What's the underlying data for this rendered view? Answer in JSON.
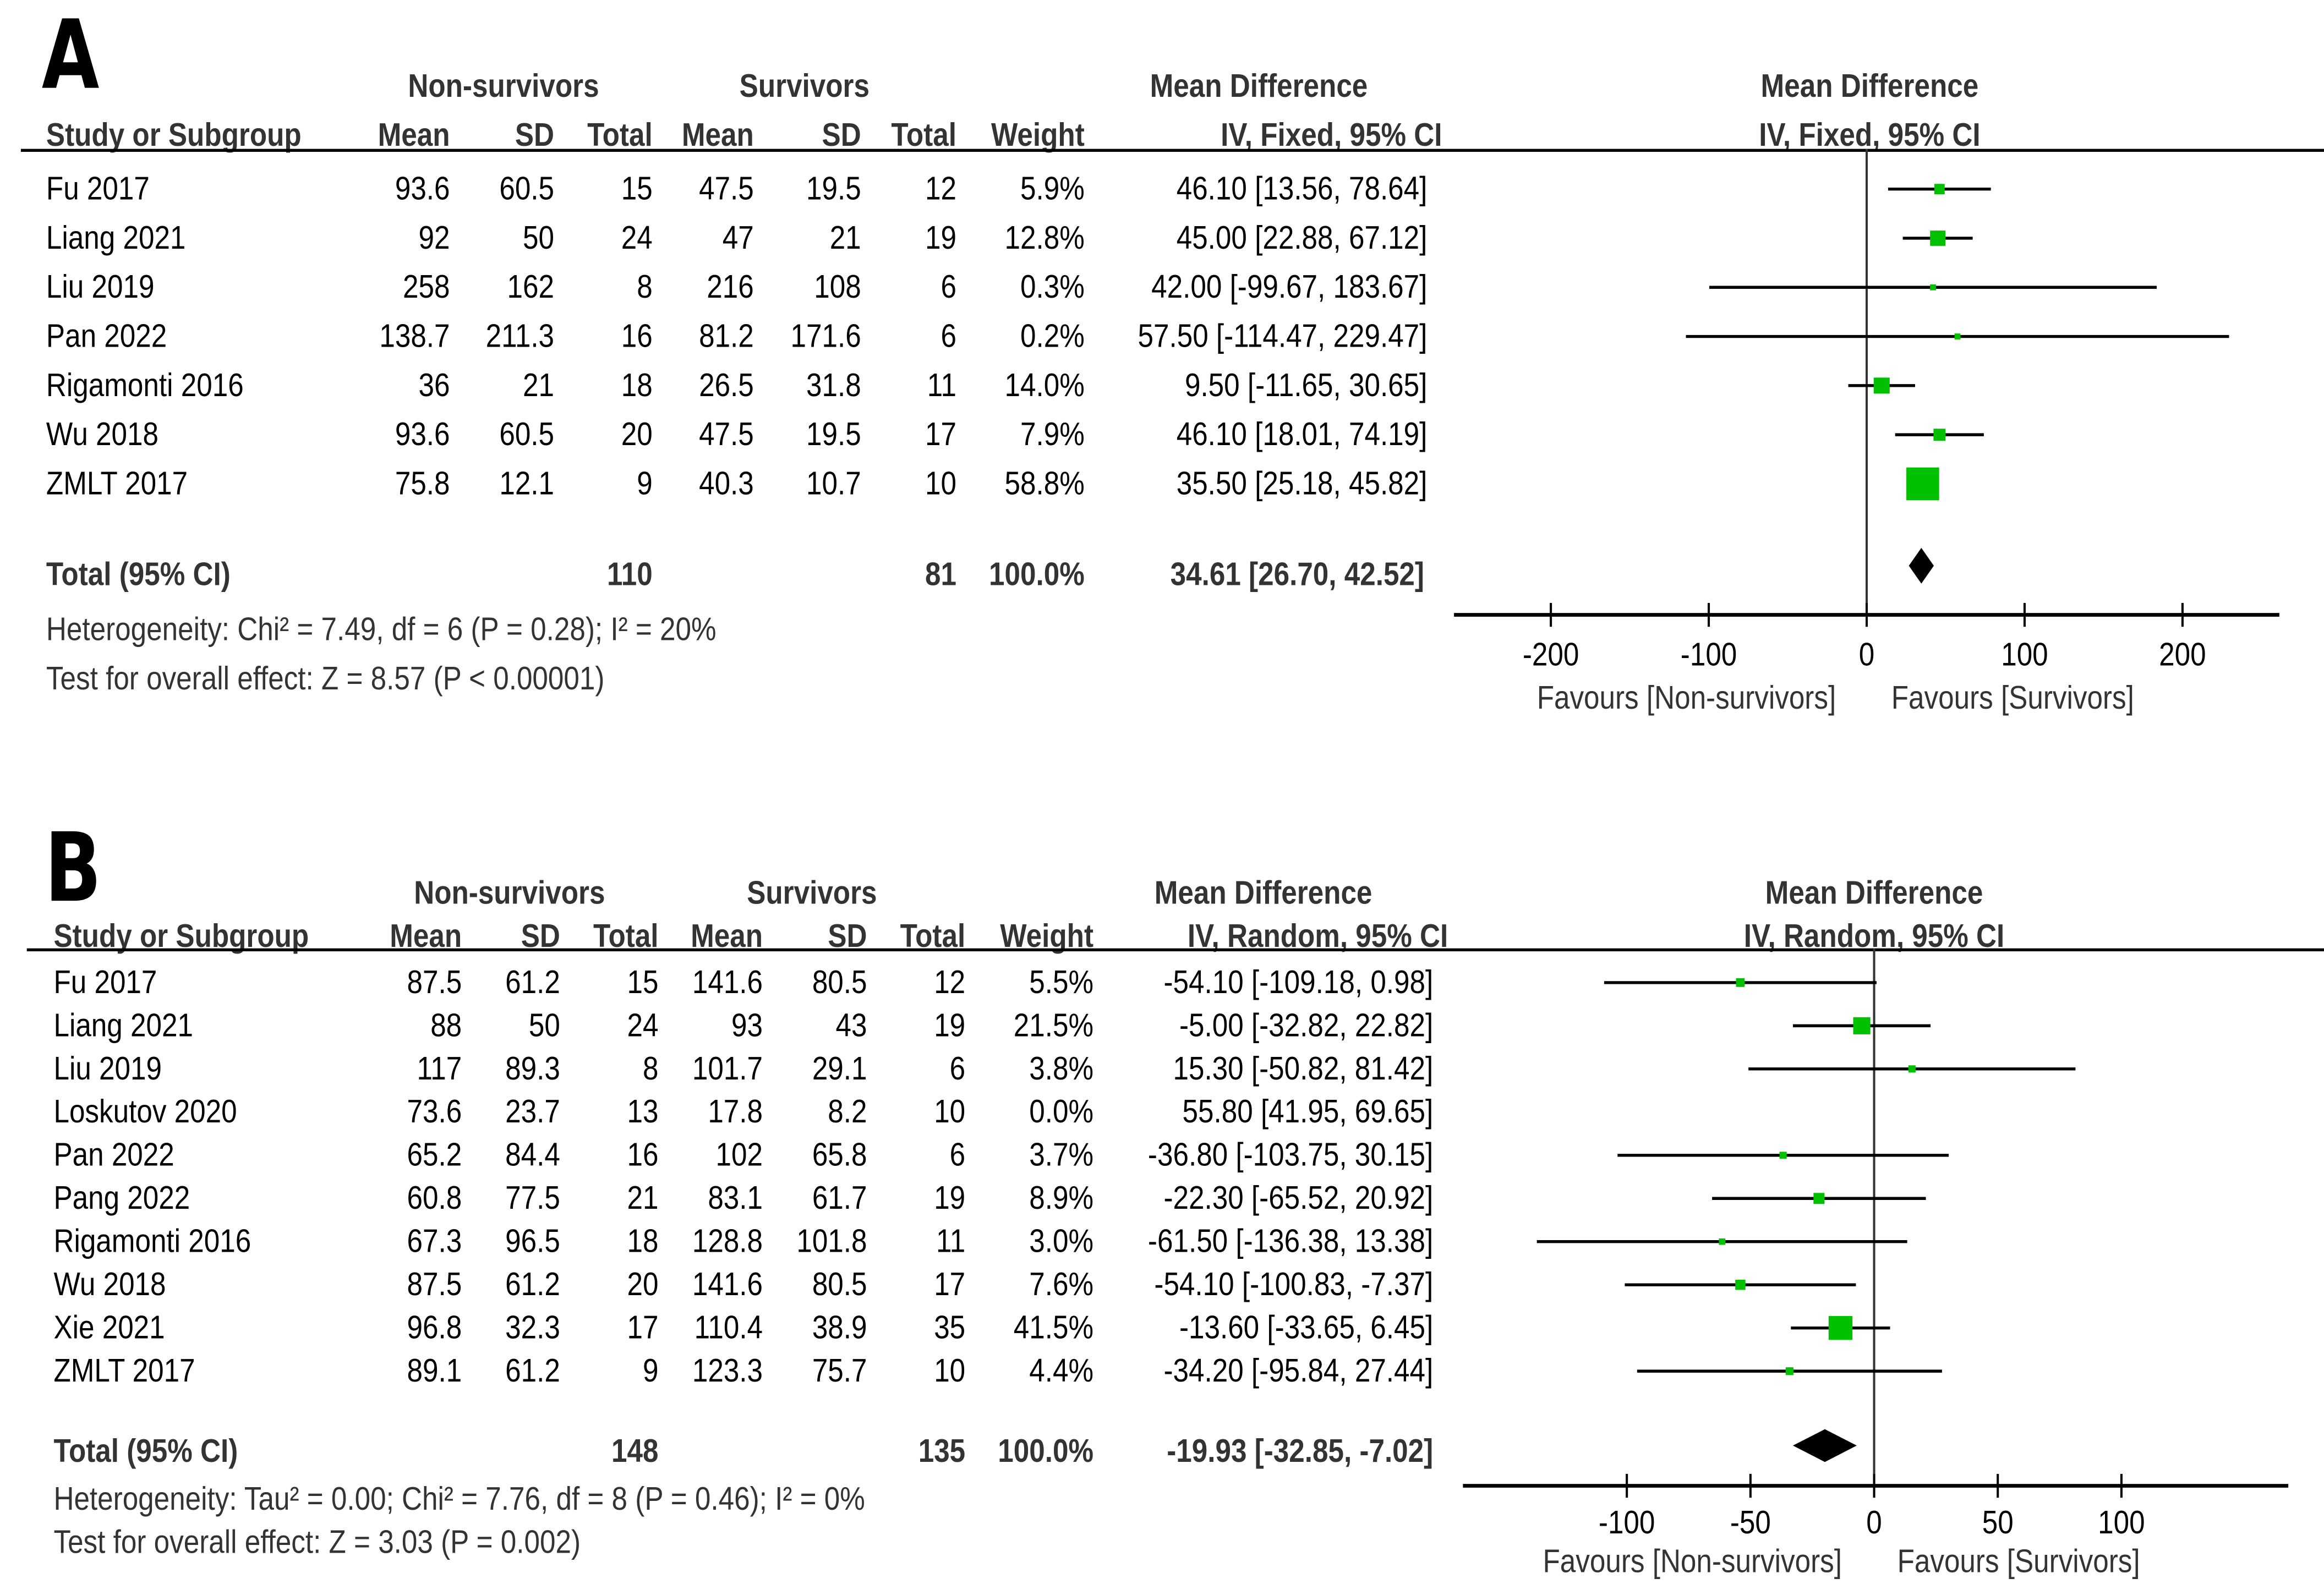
{
  "chart_data": [
    {
      "type": "forest",
      "panel_label": "A",
      "group_labels": {
        "experimental": "Non-survivors",
        "control": "Survivors"
      },
      "columns": {
        "study": "Study or Subgroup",
        "mean": "Mean",
        "sd": "SD",
        "total": "Total",
        "weight": "Weight",
        "effect_title": "Mean Difference",
        "effect_method": "IV, Fixed, 95% CI"
      },
      "studies": [
        {
          "name": "Fu 2017",
          "exp_mean": "93.6",
          "exp_sd": "60.5",
          "exp_total": "15",
          "ctl_mean": "47.5",
          "ctl_sd": "19.5",
          "ctl_total": "12",
          "weight": "5.9%",
          "ci_text": "46.10 [13.56, 78.64]",
          "md": 46.1,
          "lo": 13.56,
          "hi": 78.64,
          "w": 5.9
        },
        {
          "name": "Liang 2021",
          "exp_mean": "92",
          "exp_sd": "50",
          "exp_total": "24",
          "ctl_mean": "47",
          "ctl_sd": "21",
          "ctl_total": "19",
          "weight": "12.8%",
          "ci_text": "45.00 [22.88, 67.12]",
          "md": 45.0,
          "lo": 22.88,
          "hi": 67.12,
          "w": 12.8
        },
        {
          "name": "Liu 2019",
          "exp_mean": "258",
          "exp_sd": "162",
          "exp_total": "8",
          "ctl_mean": "216",
          "ctl_sd": "108",
          "ctl_total": "6",
          "weight": "0.3%",
          "ci_text": "42.00 [-99.67, 183.67]",
          "md": 42.0,
          "lo": -99.67,
          "hi": 183.67,
          "w": 0.3
        },
        {
          "name": "Pan 2022",
          "exp_mean": "138.7",
          "exp_sd": "211.3",
          "exp_total": "16",
          "ctl_mean": "81.2",
          "ctl_sd": "171.6",
          "ctl_total": "6",
          "weight": "0.2%",
          "ci_text": "57.50 [-114.47, 229.47]",
          "md": 57.5,
          "lo": -114.47,
          "hi": 229.47,
          "w": 0.2
        },
        {
          "name": "Rigamonti 2016",
          "exp_mean": "36",
          "exp_sd": "21",
          "exp_total": "18",
          "ctl_mean": "26.5",
          "ctl_sd": "31.8",
          "ctl_total": "11",
          "weight": "14.0%",
          "ci_text": "9.50 [-11.65, 30.65]",
          "md": 9.5,
          "lo": -11.65,
          "hi": 30.65,
          "w": 14.0
        },
        {
          "name": "Wu 2018",
          "exp_mean": "93.6",
          "exp_sd": "60.5",
          "exp_total": "20",
          "ctl_mean": "47.5",
          "ctl_sd": "19.5",
          "ctl_total": "17",
          "weight": "7.9%",
          "ci_text": "46.10 [18.01, 74.19]",
          "md": 46.1,
          "lo": 18.01,
          "hi": 74.19,
          "w": 7.9
        },
        {
          "name": "ZMLT 2017",
          "exp_mean": "75.8",
          "exp_sd": "12.1",
          "exp_total": "9",
          "ctl_mean": "40.3",
          "ctl_sd": "10.7",
          "ctl_total": "10",
          "weight": "58.8%",
          "ci_text": "35.50 [25.18, 45.82]",
          "md": 35.5,
          "lo": 25.18,
          "hi": 45.82,
          "w": 58.8
        }
      ],
      "total": {
        "label": "Total (95% CI)",
        "exp_total": "110",
        "ctl_total": "81",
        "weight": "100.0%",
        "ci_text": "34.61 [26.70, 42.52]",
        "md": 34.61,
        "lo": 26.7,
        "hi": 42.52
      },
      "heterogeneity": "Heterogeneity: Chi² = 7.49, df = 6 (P = 0.28); I² = 20%",
      "overall_effect": "Test for overall effect: Z = 8.57 (P < 0.00001)",
      "xlim": [
        -260,
        260
      ],
      "xticks": [
        -200,
        -100,
        0,
        100,
        200
      ],
      "xtick_labels": [
        "-200",
        "-100",
        "0",
        "100",
        "200"
      ],
      "favours_left": "Favours [Non-survivors]",
      "favours_right": "Favours [Survivors]",
      "colors": {
        "square": "#00c000",
        "diamond": "#000000",
        "line": "#000000"
      }
    },
    {
      "type": "forest",
      "panel_label": "B",
      "group_labels": {
        "experimental": "Non-survivors",
        "control": "Survivors"
      },
      "columns": {
        "study": "Study or Subgroup",
        "mean": "Mean",
        "sd": "SD",
        "total": "Total",
        "weight": "Weight",
        "effect_title": "Mean Difference",
        "effect_method": "IV, Random, 95% CI"
      },
      "studies": [
        {
          "name": "Fu 2017",
          "exp_mean": "87.5",
          "exp_sd": "61.2",
          "exp_total": "15",
          "ctl_mean": "141.6",
          "ctl_sd": "80.5",
          "ctl_total": "12",
          "weight": "5.5%",
          "ci_text": "-54.10 [-109.18, 0.98]",
          "md": -54.1,
          "lo": -109.18,
          "hi": 0.98,
          "w": 5.5
        },
        {
          "name": "Liang 2021",
          "exp_mean": "88",
          "exp_sd": "50",
          "exp_total": "24",
          "ctl_mean": "93",
          "ctl_sd": "43",
          "ctl_total": "19",
          "weight": "21.5%",
          "ci_text": "-5.00 [-32.82, 22.82]",
          "md": -5.0,
          "lo": -32.82,
          "hi": 22.82,
          "w": 21.5
        },
        {
          "name": "Liu 2019",
          "exp_mean": "117",
          "exp_sd": "89.3",
          "exp_total": "8",
          "ctl_mean": "101.7",
          "ctl_sd": "29.1",
          "ctl_total": "6",
          "weight": "3.8%",
          "ci_text": "15.30 [-50.82, 81.42]",
          "md": 15.3,
          "lo": -50.82,
          "hi": 81.42,
          "w": 3.8
        },
        {
          "name": "Loskutov 2020",
          "exp_mean": "73.6",
          "exp_sd": "23.7",
          "exp_total": "13",
          "ctl_mean": "17.8",
          "ctl_sd": "8.2",
          "ctl_total": "10",
          "weight": "0.0%",
          "ci_text": "55.80 [41.95, 69.65]",
          "md": 55.8,
          "lo": 41.95,
          "hi": 69.65,
          "w": 0.0
        },
        {
          "name": "Pan 2022",
          "exp_mean": "65.2",
          "exp_sd": "84.4",
          "exp_total": "16",
          "ctl_mean": "102",
          "ctl_sd": "65.8",
          "ctl_total": "6",
          "weight": "3.7%",
          "ci_text": "-36.80 [-103.75, 30.15]",
          "md": -36.8,
          "lo": -103.75,
          "hi": 30.15,
          "w": 3.7
        },
        {
          "name": "Pang 2022",
          "exp_mean": "60.8",
          "exp_sd": "77.5",
          "exp_total": "21",
          "ctl_mean": "83.1",
          "ctl_sd": "61.7",
          "ctl_total": "19",
          "weight": "8.9%",
          "ci_text": "-22.30 [-65.52, 20.92]",
          "md": -22.3,
          "lo": -65.52,
          "hi": 20.92,
          "w": 8.9
        },
        {
          "name": "Rigamonti 2016",
          "exp_mean": "67.3",
          "exp_sd": "96.5",
          "exp_total": "18",
          "ctl_mean": "128.8",
          "ctl_sd": "101.8",
          "ctl_total": "11",
          "weight": "3.0%",
          "ci_text": "-61.50 [-136.38, 13.38]",
          "md": -61.5,
          "lo": -136.38,
          "hi": 13.38,
          "w": 3.0
        },
        {
          "name": "Wu 2018",
          "exp_mean": "87.5",
          "exp_sd": "61.2",
          "exp_total": "20",
          "ctl_mean": "141.6",
          "ctl_sd": "80.5",
          "ctl_total": "17",
          "weight": "7.6%",
          "ci_text": "-54.10 [-100.83, -7.37]",
          "md": -54.1,
          "lo": -100.83,
          "hi": -7.37,
          "w": 7.6
        },
        {
          "name": "Xie 2021",
          "exp_mean": "96.8",
          "exp_sd": "32.3",
          "exp_total": "17",
          "ctl_mean": "110.4",
          "ctl_sd": "38.9",
          "ctl_total": "35",
          "weight": "41.5%",
          "ci_text": "-13.60 [-33.65, 6.45]",
          "md": -13.6,
          "lo": -33.65,
          "hi": 6.45,
          "w": 41.5
        },
        {
          "name": "ZMLT 2017",
          "exp_mean": "89.1",
          "exp_sd": "61.2",
          "exp_total": "9",
          "ctl_mean": "123.3",
          "ctl_sd": "75.7",
          "ctl_total": "10",
          "weight": "4.4%",
          "ci_text": "-34.20 [-95.84, 27.44]",
          "md": -34.2,
          "lo": -95.84,
          "hi": 27.44,
          "w": 4.4
        }
      ],
      "total": {
        "label": "Total (95% CI)",
        "exp_total": "148",
        "ctl_total": "135",
        "weight": "100.0%",
        "ci_text": "-19.93 [-32.85, -7.02]",
        "md": -19.93,
        "lo": -32.85,
        "hi": -7.02
      },
      "heterogeneity": "Heterogeneity: Tau² = 0.00; Chi² = 7.76, df = 8 (P = 0.46); I² = 0%",
      "overall_effect": "Test for overall effect: Z = 3.03 (P = 0.002)",
      "xlim": [
        -166,
        166
      ],
      "xticks": [
        -100,
        -50,
        0,
        50,
        100
      ],
      "xtick_labels": [
        "-100",
        "-50",
        "0",
        "50",
        "100"
      ],
      "favours_left": "Favours [Non-survivors]",
      "favours_right": "Favours [Survivors]",
      "colors": {
        "square": "#00c000",
        "diamond": "#000000",
        "line": "#000000"
      }
    }
  ]
}
